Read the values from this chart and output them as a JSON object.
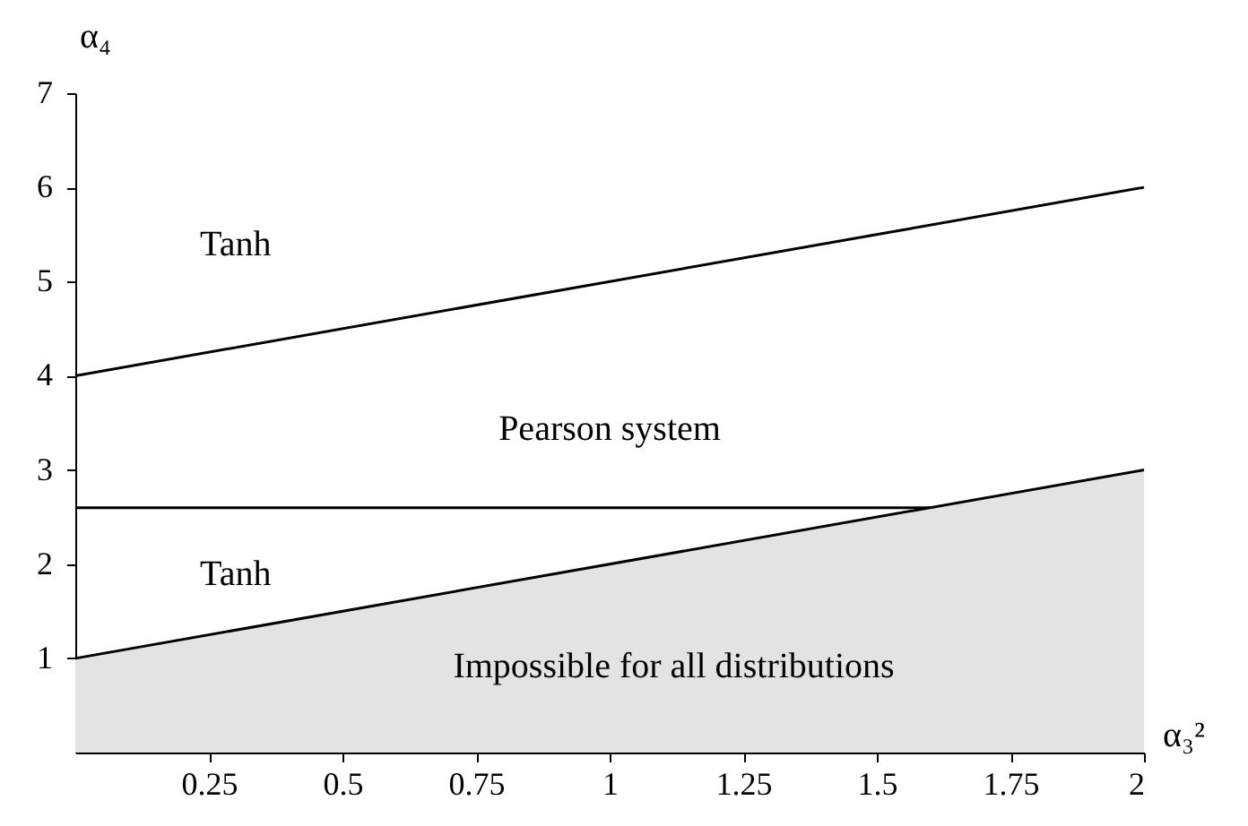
{
  "chart_data": {
    "type": "line",
    "xlabel": "α₃²",
    "ylabel": "α₄",
    "xlim": [
      0,
      2
    ],
    "ylim": [
      0,
      7
    ],
    "xticks": [
      0.25,
      0.5,
      0.75,
      1,
      1.25,
      1.5,
      1.75,
      2
    ],
    "yticks": [
      1,
      2,
      3,
      4,
      5,
      6,
      7
    ],
    "grid": false,
    "series": [
      {
        "color": "#000000",
        "x": [
          0,
          2
        ],
        "values": [
          4,
          6
        ]
      },
      {
        "color": "#000000",
        "x": [
          0,
          1.6
        ],
        "values": [
          2.6,
          2.6
        ]
      },
      {
        "type": "area",
        "color": "#e3e3e3",
        "x": [
          0,
          2
        ],
        "values": [
          1,
          3
        ]
      }
    ],
    "annotations": [
      "Tanh",
      "Pearson system",
      "Tanh",
      "Impossible for all distributions"
    ]
  }
}
